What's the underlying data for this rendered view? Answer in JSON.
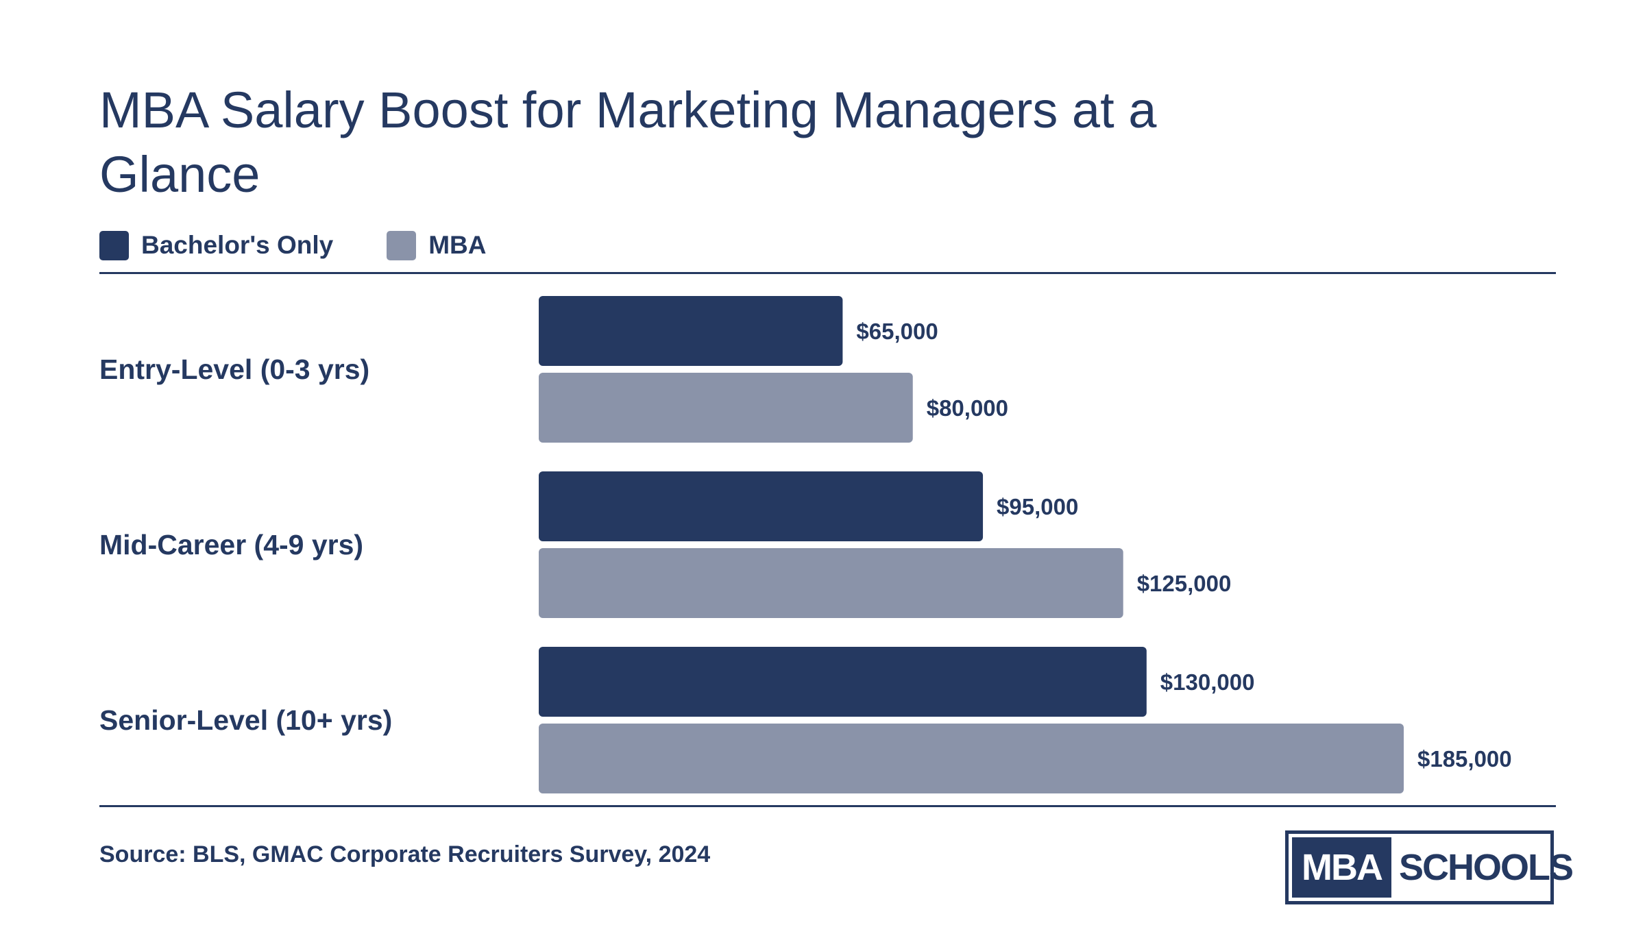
{
  "chart_data": {
    "type": "bar",
    "orientation": "horizontal",
    "title": "MBA Salary Boost for Marketing Managers at a Glance",
    "categories": [
      "Entry-Level (0-3 yrs)",
      "Mid-Career (4-9 yrs)",
      "Senior-Level (10+ yrs)"
    ],
    "series": [
      {
        "name": "Bachelor's Only",
        "color": "#253961",
        "values": [
          65000,
          95000,
          130000
        ],
        "labels": [
          "$65,000",
          "$95,000",
          "$130,000"
        ]
      },
      {
        "name": "MBA",
        "color": "#8a93a9",
        "values": [
          80000,
          125000,
          185000
        ],
        "labels": [
          "$80,000",
          "$125,000",
          "$185,000"
        ]
      }
    ],
    "xlim": [
      0,
      185000
    ],
    "grid": false,
    "legend": "top-left"
  },
  "source": "Source: BLS, GMAC Corporate Recruiters Survey, 2024",
  "logo": {
    "left": "MBA",
    "right": "SCHOOLS"
  }
}
